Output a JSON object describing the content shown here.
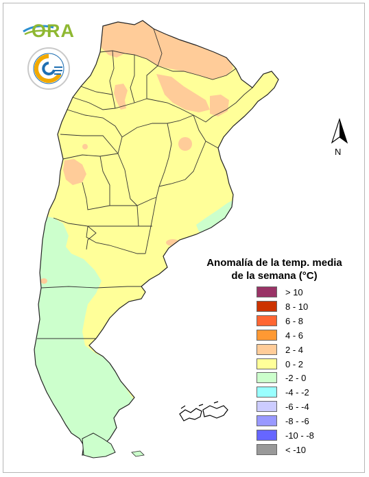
{
  "logo": {
    "ora_text": "ORA",
    "seal_top_text": "SERVICIO METEOROLÓGICO NACIONAL",
    "seal_bottom_text": "ARGENTINA"
  },
  "north": {
    "label": "N",
    "icon": "north-arrow-icon"
  },
  "legend": {
    "title_line1": "Anomalía de la temp. media",
    "title_line2": "de la semana (°C)",
    "items": [
      {
        "label": "> 10",
        "color": "#993366"
      },
      {
        "label": "8 - 10",
        "color": "#cc3300"
      },
      {
        "label": "6 - 8",
        "color": "#ff6633"
      },
      {
        "label": "4 - 6",
        "color": "#ff9933"
      },
      {
        "label": "2 - 4",
        "color": "#ffcc99"
      },
      {
        "label": "0 - 2",
        "color": "#ffff99"
      },
      {
        "label": "-2 - 0",
        "color": "#ccffcc"
      },
      {
        "label": "-4 - -2",
        "color": "#99ffff"
      },
      {
        "label": "-6 - -4",
        "color": "#ccccff"
      },
      {
        "label": "-8 - -6",
        "color": "#9999ff"
      },
      {
        "label": "-10 - -8",
        "color": "#6666ff"
      },
      {
        "label": "< -10",
        "color": "#999999"
      }
    ]
  },
  "map": {
    "colors": {
      "warm_2_4": "#ffcc99",
      "neutral_0_2": "#ffff99",
      "cool_m2_0": "#ccffcc",
      "border": "#333333"
    }
  }
}
